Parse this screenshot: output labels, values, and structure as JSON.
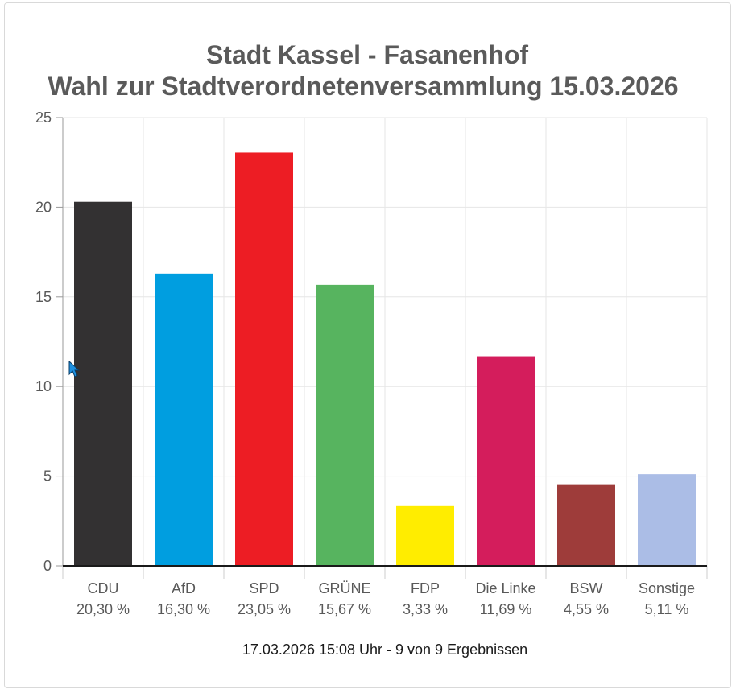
{
  "chart_data": {
    "type": "bar",
    "title": [
      "Stadt Kassel - Fasanenhof",
      "Wahl zur Stadtverordnetenversammlung 15.03.2026"
    ],
    "categories": [
      "CDU",
      "AfD",
      "SPD",
      "GRÜNE",
      "FDP",
      "Die Linke",
      "BSW",
      "Sonstige"
    ],
    "values": [
      20.3,
      16.3,
      23.05,
      15.67,
      3.33,
      11.69,
      4.55,
      5.11
    ],
    "value_labels": [
      "20,30 %",
      "16,30 %",
      "23,05 %",
      "15,67 %",
      "3,33 %",
      "11,69 %",
      "4,55 %",
      "5,11 %"
    ],
    "colors": [
      "#333132",
      "#009ee0",
      "#ed1d24",
      "#57b45f",
      "#ffed00",
      "#d41d5c",
      "#9e3c3a",
      "#abbde6"
    ],
    "ylim": [
      0,
      25
    ],
    "yticks": [
      "0",
      "5",
      "10",
      "15",
      "20",
      "25"
    ],
    "grid": true,
    "xlabel": "",
    "ylabel": ""
  },
  "footer": "17.03.2026 15:08 Uhr - 9 von 9 Ergebnissen"
}
